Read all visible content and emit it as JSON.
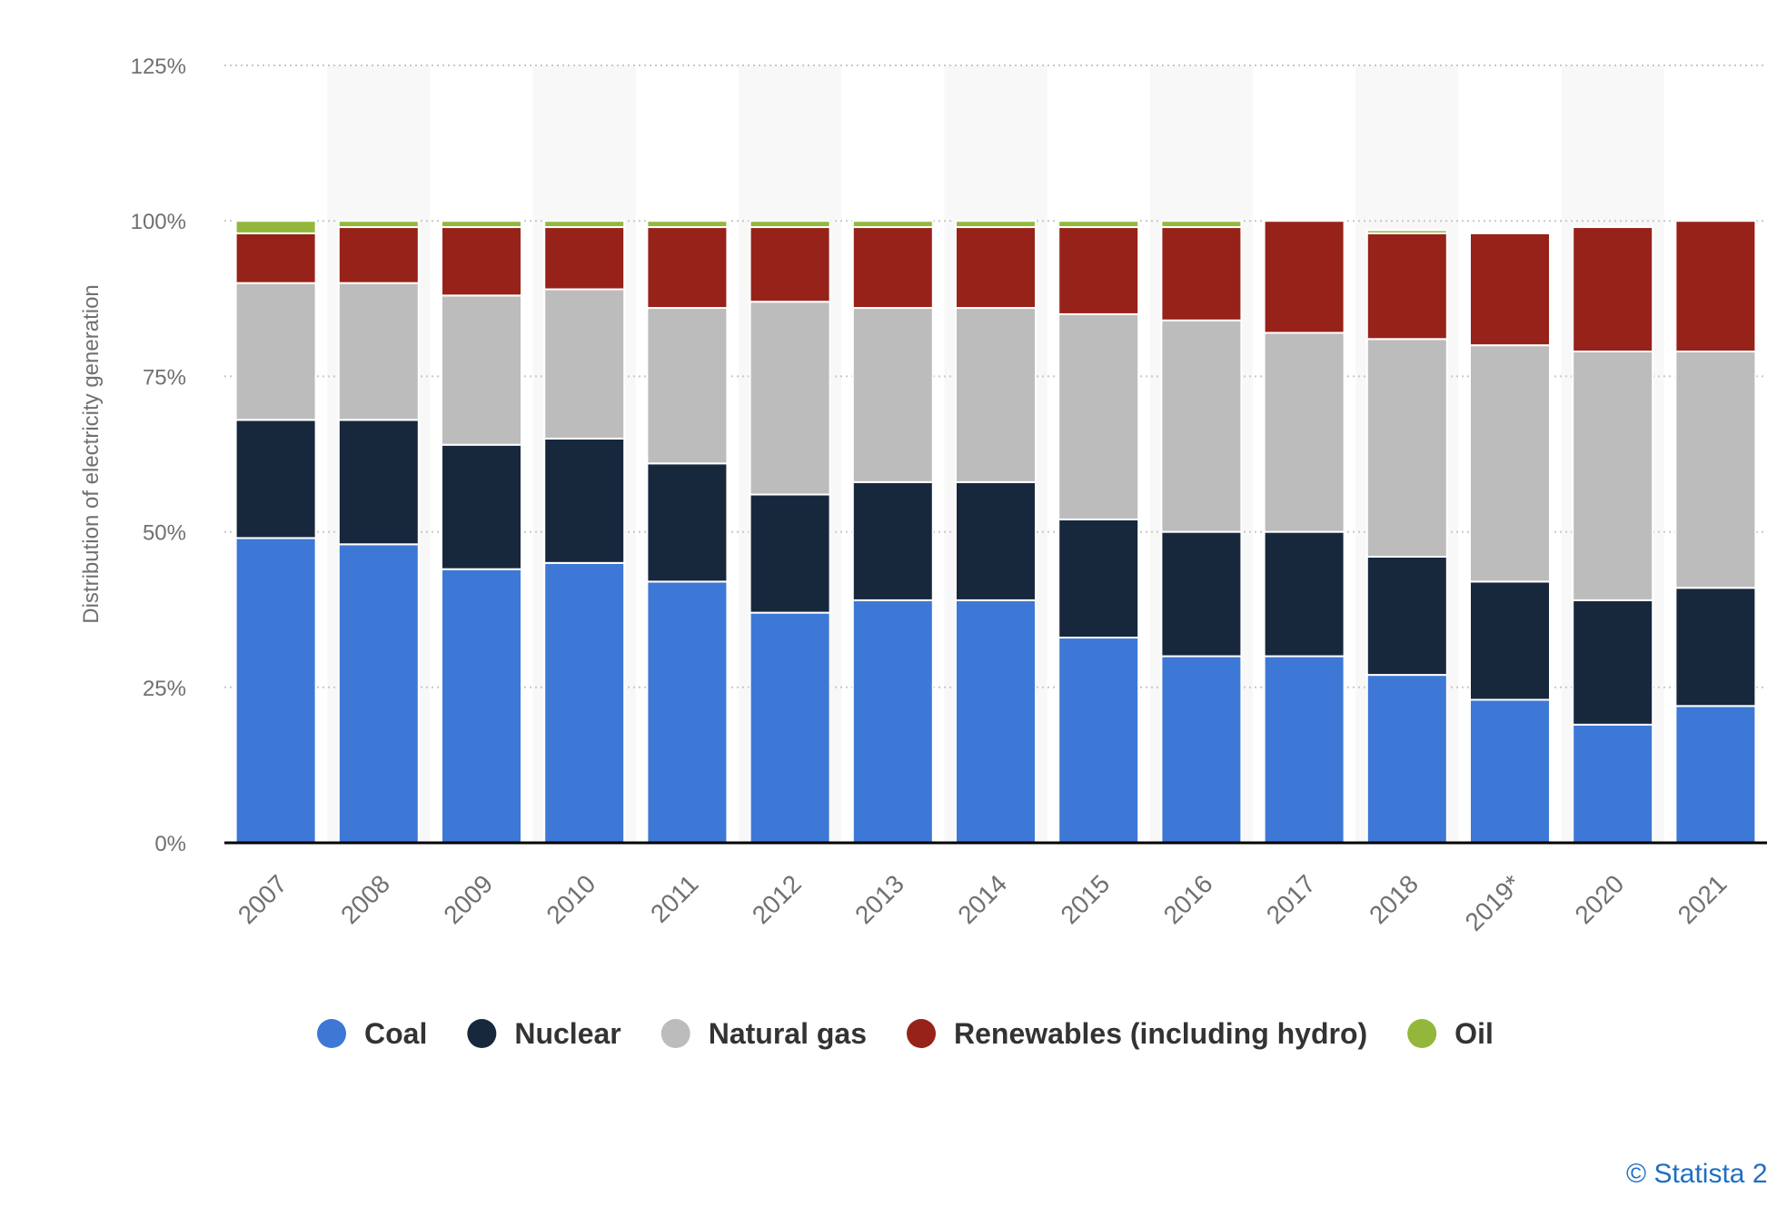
{
  "chart_data": {
    "type": "bar",
    "stacked": true,
    "title": "",
    "xlabel": "",
    "ylabel": "Distribution of electricity generation",
    "ylim": [
      0,
      125
    ],
    "yticks": [
      "0%",
      "25%",
      "50%",
      "75%",
      "100%",
      "125%"
    ],
    "ytick_values": [
      0,
      25,
      50,
      75,
      100,
      125
    ],
    "grid": true,
    "legend_position": "bottom-center",
    "categories": [
      "2007",
      "2008",
      "2009",
      "2010",
      "2011",
      "2012",
      "2013",
      "2014",
      "2015",
      "2016",
      "2017",
      "2018",
      "2019*",
      "2020",
      "2021"
    ],
    "series": [
      {
        "name": "Coal",
        "color": "#3e78d6",
        "values": [
          49,
          48,
          44,
          45,
          42,
          37,
          39,
          39,
          33,
          30,
          30,
          27,
          23,
          19,
          22
        ]
      },
      {
        "name": "Nuclear",
        "color": "#17283d",
        "values": [
          19,
          20,
          20,
          20,
          19,
          19,
          19,
          19,
          19,
          20,
          20,
          19,
          19,
          20,
          19
        ]
      },
      {
        "name": "Natural gas",
        "color": "#bcbcbc",
        "values": [
          22,
          22,
          24,
          24,
          25,
          31,
          28,
          28,
          33,
          34,
          32,
          35,
          38,
          40,
          38
        ]
      },
      {
        "name": "Renewables (including hydro)",
        "color": "#97221a",
        "values": [
          8,
          9,
          11,
          10,
          13,
          12,
          13,
          13,
          14,
          15,
          18,
          17,
          18,
          20,
          21
        ]
      },
      {
        "name": "Oil",
        "color": "#92b73b",
        "values": [
          2,
          1,
          1,
          1,
          1,
          1,
          1,
          1,
          1,
          1,
          0,
          0.5,
          0,
          0,
          0
        ]
      }
    ]
  },
  "credit": {
    "text": "© Statista 2"
  },
  "colors": {
    "background": "#ffffff",
    "band": "#f8f8f8",
    "grid": "#c8c8c8",
    "axis": "#000000",
    "segment_border": "#ffffff"
  }
}
